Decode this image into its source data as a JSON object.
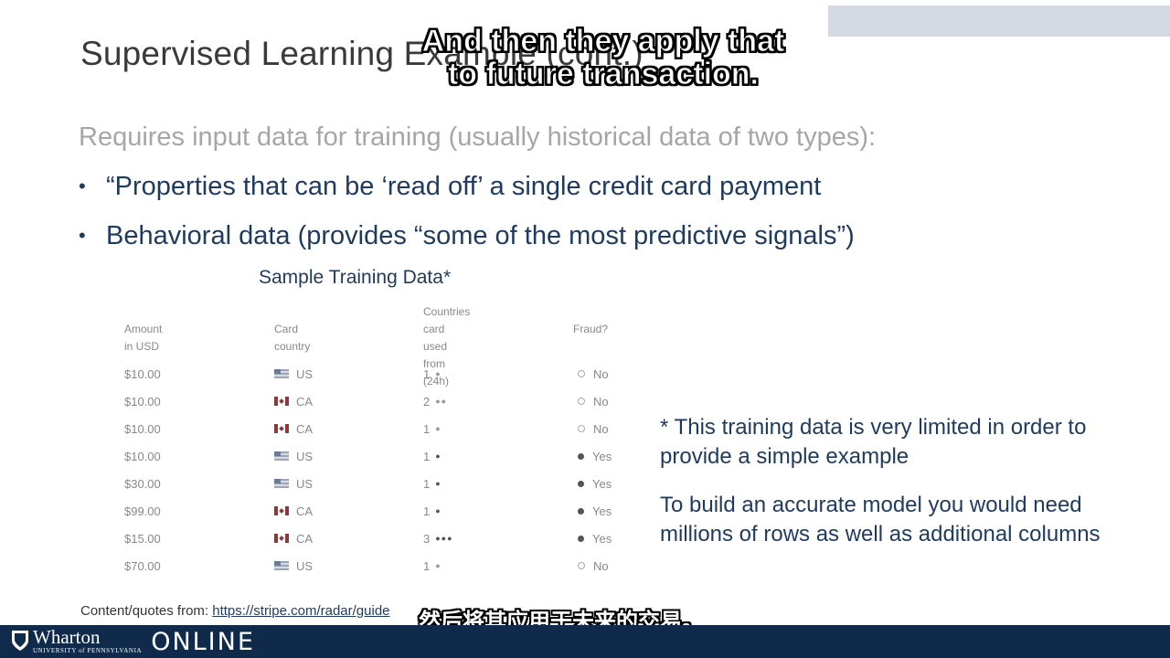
{
  "slide": {
    "title": "Supervised Learning Example (cont.)",
    "intro": "Requires input data for training (usually historical data of two types):",
    "bullets": [
      "“Properties that can be ‘read off’ a single credit card payment",
      "Behavioral data (provides “some of the most predictive signals”)"
    ],
    "bullet_symbol": "•"
  },
  "subtitles": {
    "en_line1": "And then they apply that",
    "en_line2": "to future transaction.",
    "zh": "然后将其应用于未来的交易。"
  },
  "table": {
    "title": "Sample Training Data*",
    "headers": {
      "amount": "Amount in USD",
      "country": "Card country",
      "countries_line1": "Countries card used",
      "countries_line2": "from (24h)",
      "fraud": "Fraud?"
    },
    "rows": [
      {
        "amount": "$10.00",
        "country": "US",
        "flag": "us",
        "count": "1",
        "dots": "●",
        "fraud": "No"
      },
      {
        "amount": "$10.00",
        "country": "CA",
        "flag": "ca",
        "count": "2",
        "dots": "●●",
        "fraud": "No"
      },
      {
        "amount": "$10.00",
        "country": "CA",
        "flag": "ca",
        "count": "1",
        "dots": "●",
        "fraud": "No"
      },
      {
        "amount": "$10.00",
        "country": "US",
        "flag": "us",
        "count": "1",
        "dots": "●",
        "fraud": "Yes"
      },
      {
        "amount": "$30.00",
        "country": "US",
        "flag": "us",
        "count": "1",
        "dots": "●",
        "fraud": "Yes"
      },
      {
        "amount": "$99.00",
        "country": "CA",
        "flag": "ca",
        "count": "1",
        "dots": "●",
        "fraud": "Yes"
      },
      {
        "amount": "$15.00",
        "country": "CA",
        "flag": "ca",
        "count": "3",
        "dots": "●●●",
        "fraud": "Yes"
      },
      {
        "amount": "$70.00",
        "country": "US",
        "flag": "us",
        "count": "1",
        "dots": "●",
        "fraud": "No"
      }
    ]
  },
  "notes": {
    "note1": "* This training data is very limited in order to provide a simple example",
    "note2": "To build an accurate model you would need millions of rows as well as additional columns"
  },
  "source": {
    "label": "Content/quotes from:",
    "link": "https://stripe.com/radar/guide"
  },
  "footer": {
    "logo_name": "Wharton",
    "logo_sub": "UNIVERSITY of PENNSYLVANIA",
    "logo_online": "ONLINE"
  },
  "colors": {
    "title": "#3a3a3a",
    "intro": "#a6a6a6",
    "body": "#1f3a5f",
    "footer": "#0f2a4a",
    "top_bar": "#d4dae3"
  }
}
